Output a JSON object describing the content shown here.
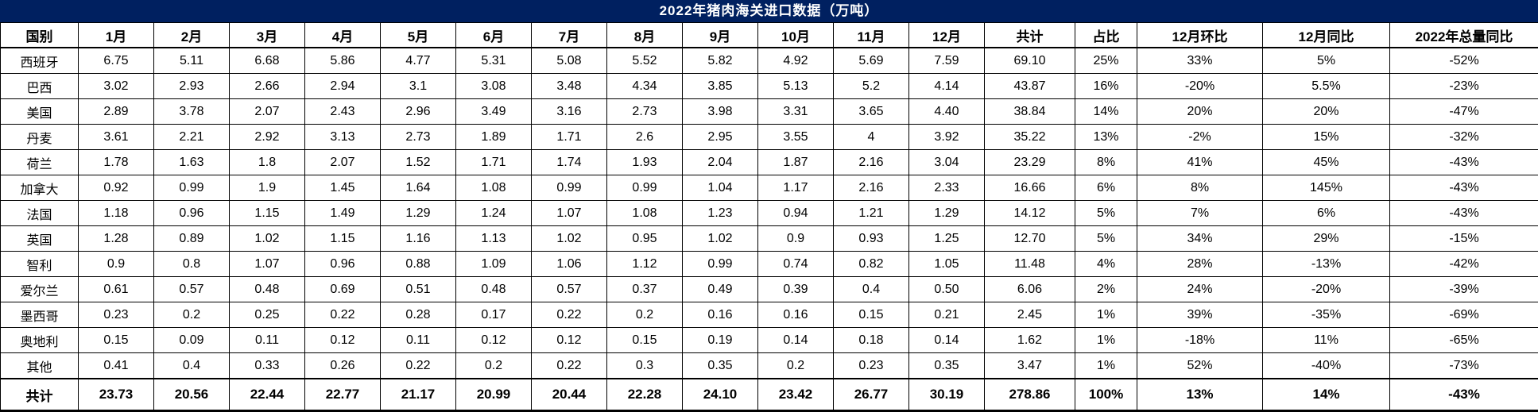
{
  "title": "2022年猪肉海关进口数据（万吨）",
  "colors": {
    "title_bg": "#002060",
    "title_text": "#ffffff",
    "grid_border": "#000000",
    "cell_text": "#000000",
    "cell_bg": "#ffffff"
  },
  "chart_data": {
    "type": "table",
    "title": "2022年猪肉海关进口数据（万吨）",
    "columns": [
      "国别",
      "1月",
      "2月",
      "3月",
      "4月",
      "5月",
      "6月",
      "7月",
      "8月",
      "9月",
      "10月",
      "11月",
      "12月",
      "共计",
      "占比",
      "12月环比",
      "12月同比",
      "2022年总量同比"
    ],
    "rows": [
      [
        "西班牙",
        "6.75",
        "5.11",
        "6.68",
        "5.86",
        "4.77",
        "5.31",
        "5.08",
        "5.52",
        "5.82",
        "4.92",
        "5.69",
        "7.59",
        "69.10",
        "25%",
        "33%",
        "5%",
        "-52%"
      ],
      [
        "巴西",
        "3.02",
        "2.93",
        "2.66",
        "2.94",
        "3.1",
        "3.08",
        "3.48",
        "4.34",
        "3.85",
        "5.13",
        "5.2",
        "4.14",
        "43.87",
        "16%",
        "-20%",
        "5.5%",
        "-23%"
      ],
      [
        "美国",
        "2.89",
        "3.78",
        "2.07",
        "2.43",
        "2.96",
        "3.49",
        "3.16",
        "2.73",
        "3.98",
        "3.31",
        "3.65",
        "4.40",
        "38.84",
        "14%",
        "20%",
        "20%",
        "-47%"
      ],
      [
        "丹麦",
        "3.61",
        "2.21",
        "2.92",
        "3.13",
        "2.73",
        "1.89",
        "1.71",
        "2.6",
        "2.95",
        "3.55",
        "4",
        "3.92",
        "35.22",
        "13%",
        "-2%",
        "15%",
        "-32%"
      ],
      [
        "荷兰",
        "1.78",
        "1.63",
        "1.8",
        "2.07",
        "1.52",
        "1.71",
        "1.74",
        "1.93",
        "2.04",
        "1.87",
        "2.16",
        "3.04",
        "23.29",
        "8%",
        "41%",
        "45%",
        "-43%"
      ],
      [
        "加拿大",
        "0.92",
        "0.99",
        "1.9",
        "1.45",
        "1.64",
        "1.08",
        "0.99",
        "0.99",
        "1.04",
        "1.17",
        "2.16",
        "2.33",
        "16.66",
        "6%",
        "8%",
        "145%",
        "-43%"
      ],
      [
        "法国",
        "1.18",
        "0.96",
        "1.15",
        "1.49",
        "1.29",
        "1.24",
        "1.07",
        "1.08",
        "1.23",
        "0.94",
        "1.21",
        "1.29",
        "14.12",
        "5%",
        "7%",
        "6%",
        "-43%"
      ],
      [
        "英国",
        "1.28",
        "0.89",
        "1.02",
        "1.15",
        "1.16",
        "1.13",
        "1.02",
        "0.95",
        "1.02",
        "0.9",
        "0.93",
        "1.25",
        "12.70",
        "5%",
        "34%",
        "29%",
        "-15%"
      ],
      [
        "智利",
        "0.9",
        "0.8",
        "1.07",
        "0.96",
        "0.88",
        "1.09",
        "1.06",
        "1.12",
        "0.99",
        "0.74",
        "0.82",
        "1.05",
        "11.48",
        "4%",
        "28%",
        "-13%",
        "-42%"
      ],
      [
        "爱尔兰",
        "0.61",
        "0.57",
        "0.48",
        "0.69",
        "0.51",
        "0.48",
        "0.57",
        "0.37",
        "0.49",
        "0.39",
        "0.4",
        "0.50",
        "6.06",
        "2%",
        "24%",
        "-20%",
        "-39%"
      ],
      [
        "墨西哥",
        "0.23",
        "0.2",
        "0.25",
        "0.22",
        "0.28",
        "0.17",
        "0.22",
        "0.2",
        "0.16",
        "0.16",
        "0.15",
        "0.21",
        "2.45",
        "1%",
        "39%",
        "-35%",
        "-69%"
      ],
      [
        "奥地利",
        "0.15",
        "0.09",
        "0.11",
        "0.12",
        "0.11",
        "0.12",
        "0.12",
        "0.15",
        "0.19",
        "0.14",
        "0.18",
        "0.14",
        "1.62",
        "1%",
        "-18%",
        "11%",
        "-65%"
      ],
      [
        "其他",
        "0.41",
        "0.4",
        "0.33",
        "0.26",
        "0.22",
        "0.2",
        "0.22",
        "0.3",
        "0.35",
        "0.2",
        "0.23",
        "0.35",
        "3.47",
        "1%",
        "52%",
        "-40%",
        "-73%"
      ]
    ],
    "total_row": [
      "共计",
      "23.73",
      "20.56",
      "22.44",
      "22.77",
      "21.17",
      "20.99",
      "20.44",
      "22.28",
      "24.10",
      "23.42",
      "26.77",
      "30.19",
      "278.86",
      "100%",
      "13%",
      "14%",
      "-43%"
    ]
  }
}
